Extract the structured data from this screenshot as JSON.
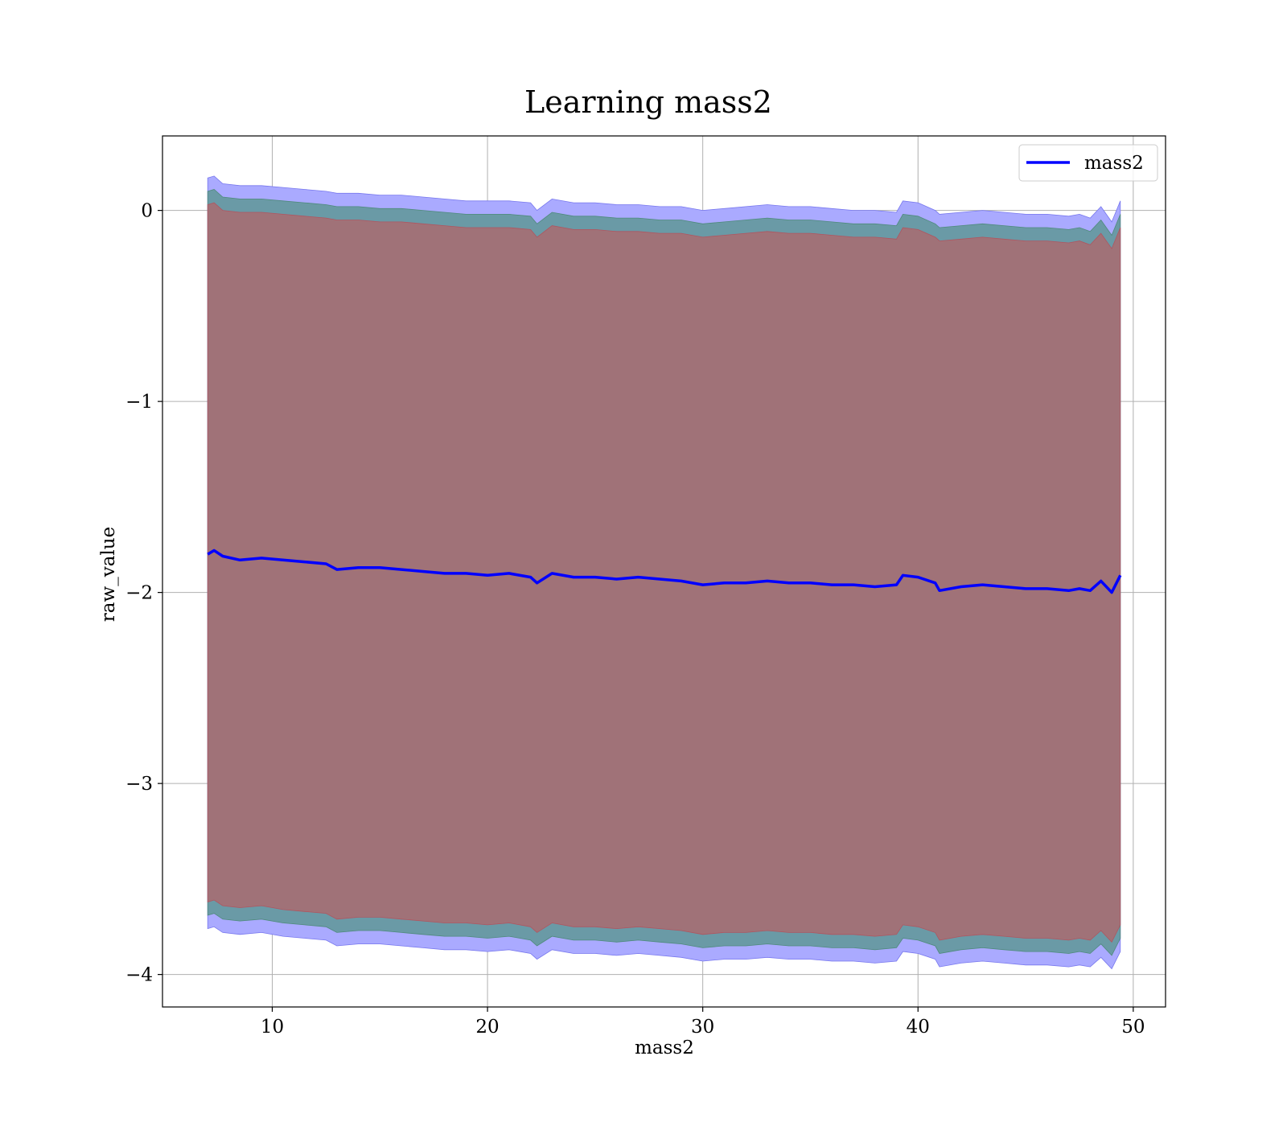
{
  "chart_data": {
    "type": "line",
    "title": "Learning mass2",
    "xlabel": "mass2",
    "ylabel": "raw_value",
    "xlim": [
      4.9,
      51.5
    ],
    "ylim": [
      -4.17,
      0.39
    ],
    "xticks": [
      10,
      20,
      30,
      40,
      50
    ],
    "yticks": [
      0,
      -1,
      -2,
      -3,
      -4
    ],
    "xtick_labels": [
      "10",
      "20",
      "30",
      "40",
      "50"
    ],
    "ytick_labels": [
      "0",
      "−1",
      "−2",
      "−3",
      "−4"
    ],
    "grid": true,
    "legend": {
      "placement": "top-right",
      "entries": [
        "mass2"
      ]
    },
    "colors": {
      "line": "#0000ff",
      "band_outer": "#aaaaff",
      "band_middle": "#6a9aa6",
      "band_inner": "#a07278"
    },
    "series": [
      {
        "name": "mass2",
        "x": [
          7.0,
          7.3,
          7.7,
          8.5,
          9.5,
          10.5,
          11.5,
          12.5,
          13.0,
          14.0,
          15.0,
          16.0,
          17.0,
          18.0,
          19.0,
          20.0,
          21.0,
          22.0,
          22.3,
          23.0,
          24.0,
          25.0,
          26.0,
          27.0,
          28.0,
          29.0,
          30.0,
          31.0,
          32.0,
          33.0,
          34.0,
          35.0,
          36.0,
          37.0,
          38.0,
          39.0,
          39.3,
          40.0,
          40.8,
          41.0,
          42.0,
          43.0,
          44.0,
          45.0,
          46.0,
          47.0,
          47.5,
          48.0,
          48.5,
          49.0,
          49.4
        ],
        "y": [
          -1.8,
          -1.78,
          -1.81,
          -1.83,
          -1.82,
          -1.83,
          -1.84,
          -1.85,
          -1.88,
          -1.87,
          -1.87,
          -1.88,
          -1.89,
          -1.9,
          -1.9,
          -1.91,
          -1.9,
          -1.92,
          -1.95,
          -1.9,
          -1.92,
          -1.92,
          -1.93,
          -1.92,
          -1.93,
          -1.94,
          -1.96,
          -1.95,
          -1.95,
          -1.94,
          -1.95,
          -1.95,
          -1.96,
          -1.96,
          -1.97,
          -1.96,
          -1.91,
          -1.92,
          -1.95,
          -1.99,
          -1.97,
          -1.96,
          -1.97,
          -1.98,
          -1.98,
          -1.99,
          -1.98,
          -1.99,
          -1.94,
          -2.0,
          -1.91
        ],
        "band_outer_upper": [
          0.17,
          0.18,
          0.14,
          0.13,
          0.13,
          0.12,
          0.11,
          0.1,
          0.09,
          0.09,
          0.08,
          0.08,
          0.07,
          0.06,
          0.05,
          0.05,
          0.05,
          0.04,
          0.0,
          0.06,
          0.04,
          0.04,
          0.03,
          0.03,
          0.02,
          0.02,
          0.0,
          0.01,
          0.02,
          0.03,
          0.02,
          0.02,
          0.01,
          0.0,
          0.0,
          -0.01,
          0.05,
          0.04,
          0.0,
          -0.02,
          -0.01,
          0.0,
          -0.01,
          -0.02,
          -0.02,
          -0.03,
          -0.02,
          -0.04,
          0.02,
          -0.06,
          0.05
        ],
        "band_middle_upper": [
          0.1,
          0.11,
          0.07,
          0.06,
          0.06,
          0.05,
          0.04,
          0.03,
          0.02,
          0.02,
          0.01,
          0.01,
          0.0,
          -0.01,
          -0.02,
          -0.02,
          -0.02,
          -0.03,
          -0.07,
          -0.01,
          -0.03,
          -0.03,
          -0.04,
          -0.04,
          -0.05,
          -0.05,
          -0.07,
          -0.06,
          -0.05,
          -0.04,
          -0.05,
          -0.05,
          -0.06,
          -0.07,
          -0.07,
          -0.08,
          -0.02,
          -0.03,
          -0.07,
          -0.09,
          -0.08,
          -0.07,
          -0.08,
          -0.09,
          -0.09,
          -0.1,
          -0.09,
          -0.11,
          -0.05,
          -0.13,
          -0.02
        ],
        "band_inner_upper": [
          0.03,
          0.04,
          0.0,
          -0.01,
          -0.01,
          -0.02,
          -0.03,
          -0.04,
          -0.05,
          -0.05,
          -0.06,
          -0.06,
          -0.07,
          -0.08,
          -0.09,
          -0.09,
          -0.09,
          -0.1,
          -0.14,
          -0.08,
          -0.1,
          -0.1,
          -0.11,
          -0.11,
          -0.12,
          -0.12,
          -0.14,
          -0.13,
          -0.12,
          -0.11,
          -0.12,
          -0.12,
          -0.13,
          -0.14,
          -0.14,
          -0.15,
          -0.09,
          -0.1,
          -0.14,
          -0.16,
          -0.15,
          -0.14,
          -0.15,
          -0.16,
          -0.16,
          -0.17,
          -0.16,
          -0.18,
          -0.12,
          -0.2,
          -0.09
        ],
        "band_inner_lower": [
          -3.62,
          -3.61,
          -3.64,
          -3.65,
          -3.64,
          -3.66,
          -3.67,
          -3.68,
          -3.71,
          -3.7,
          -3.7,
          -3.71,
          -3.72,
          -3.73,
          -3.73,
          -3.74,
          -3.73,
          -3.75,
          -3.78,
          -3.73,
          -3.75,
          -3.75,
          -3.76,
          -3.75,
          -3.76,
          -3.77,
          -3.79,
          -3.78,
          -3.78,
          -3.77,
          -3.78,
          -3.78,
          -3.79,
          -3.79,
          -3.8,
          -3.79,
          -3.74,
          -3.75,
          -3.78,
          -3.82,
          -3.8,
          -3.79,
          -3.8,
          -3.81,
          -3.81,
          -3.82,
          -3.81,
          -3.82,
          -3.77,
          -3.83,
          -3.74
        ],
        "band_middle_lower": [
          -3.69,
          -3.68,
          -3.71,
          -3.72,
          -3.71,
          -3.73,
          -3.74,
          -3.75,
          -3.78,
          -3.77,
          -3.77,
          -3.78,
          -3.79,
          -3.8,
          -3.8,
          -3.81,
          -3.8,
          -3.82,
          -3.85,
          -3.8,
          -3.82,
          -3.82,
          -3.83,
          -3.82,
          -3.83,
          -3.84,
          -3.86,
          -3.85,
          -3.85,
          -3.84,
          -3.85,
          -3.85,
          -3.86,
          -3.86,
          -3.87,
          -3.86,
          -3.81,
          -3.82,
          -3.85,
          -3.89,
          -3.87,
          -3.86,
          -3.87,
          -3.88,
          -3.88,
          -3.89,
          -3.88,
          -3.89,
          -3.84,
          -3.9,
          -3.81
        ],
        "band_outer_lower": [
          -3.76,
          -3.75,
          -3.78,
          -3.79,
          -3.78,
          -3.8,
          -3.81,
          -3.82,
          -3.85,
          -3.84,
          -3.84,
          -3.85,
          -3.86,
          -3.87,
          -3.87,
          -3.88,
          -3.87,
          -3.89,
          -3.92,
          -3.87,
          -3.89,
          -3.89,
          -3.9,
          -3.89,
          -3.9,
          -3.91,
          -3.93,
          -3.92,
          -3.92,
          -3.91,
          -3.92,
          -3.92,
          -3.93,
          -3.93,
          -3.94,
          -3.93,
          -3.88,
          -3.89,
          -3.92,
          -3.96,
          -3.94,
          -3.93,
          -3.94,
          -3.95,
          -3.95,
          -3.96,
          -3.95,
          -3.96,
          -3.91,
          -3.97,
          -3.88
        ]
      }
    ]
  }
}
